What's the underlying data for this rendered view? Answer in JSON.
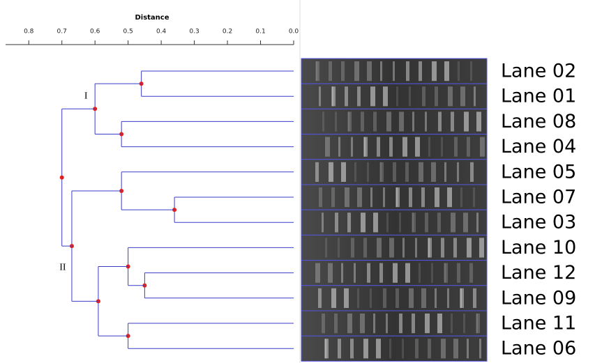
{
  "chart_data": {
    "type": "dendrogram",
    "x_label": "Distance",
    "xlim": [
      0.87,
      0
    ],
    "xticks": [
      0.8,
      0.7,
      0.6,
      0.5,
      0.4,
      0.3,
      0.2,
      0.1,
      {
        "value": 0,
        "label": "0.0"
      }
    ],
    "link_color": "#3b3bc8",
    "node_color": "#e02020",
    "tree": {
      "height": 0.7,
      "children": [
        {
          "height": 0.6,
          "label": "I",
          "children": [
            {
              "height": 0.46,
              "children": [
                "Lane 02",
                "Lane 01"
              ]
            },
            {
              "height": 0.52,
              "children": [
                "Lane 08",
                "Lane 04"
              ]
            }
          ]
        },
        {
          "height": 0.67,
          "label": "II",
          "children": [
            {
              "height": 0.52,
              "children": [
                "Lane 05",
                {
                  "height": 0.36,
                  "children": [
                    "Lane 07",
                    "Lane 03"
                  ]
                }
              ]
            },
            {
              "height": 0.59,
              "children": [
                {
                  "height": 0.5,
                  "children": [
                    "Lane 10",
                    {
                      "height": 0.45,
                      "children": [
                        "Lane 12",
                        "Lane 09"
                      ]
                    }
                  ]
                },
                {
                  "height": 0.5,
                  "children": [
                    "Lane 11",
                    "Lane 06"
                  ]
                }
              ]
            }
          ]
        }
      ]
    }
  }
}
